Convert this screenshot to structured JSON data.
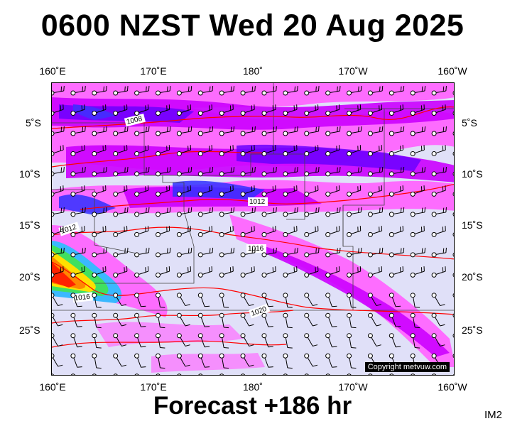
{
  "title": "0600 NZST Wed 20 Aug 2025",
  "footer": "Forecast +186 hr",
  "image_code": "IM2",
  "copyright": "Copyright metvuw.com",
  "lon_labels": [
    "160˚E",
    "170˚E",
    "180˚",
    "170˚W",
    "160˚W"
  ],
  "lat_labels": [
    "5˚S",
    "10˚S",
    "15˚S",
    "20˚S",
    "25˚S"
  ],
  "isobar_labels": [
    "1008",
    "1012",
    "1012",
    "1016",
    "1016",
    "1020"
  ],
  "colors": {
    "ocean_background": "#e0e0f8",
    "rain_light": "#ff66ff",
    "rain_moderate": "#cc00ff",
    "rain_heavy": "#6a00ff",
    "rain_very_heavy": "#3030ff",
    "rain_extreme": "#ff2200",
    "isobar": "#ff0000",
    "wind_barb": "#000000"
  }
}
